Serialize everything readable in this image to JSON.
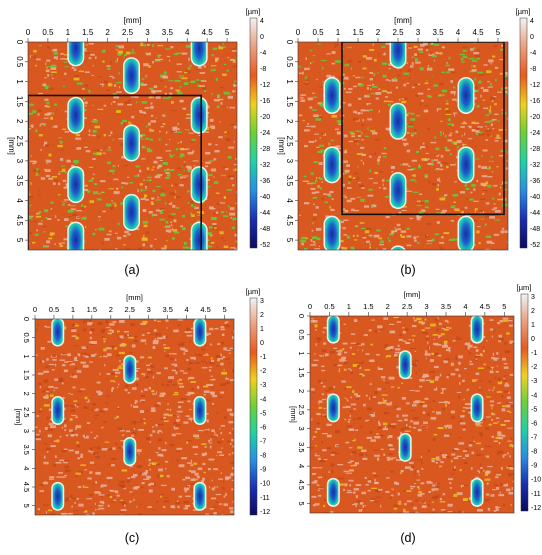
{
  "figure": {
    "panels": [
      {
        "id": "a",
        "caption": "(a)",
        "x_axis_title": "[mm]",
        "y_axis_title": "[mm]",
        "x_ticks": [
          "0",
          "0.5",
          "1",
          "1.5",
          "2",
          "2.5",
          "3",
          "3.5",
          "4",
          "4.5",
          "5"
        ],
        "y_ticks": [
          "0",
          "0.5",
          "1",
          "1.5",
          "2",
          "2.5",
          "3",
          "3.5",
          "4",
          "4.5",
          "5"
        ],
        "colorbar_unit": "[µm]",
        "colorbar_ticks": [
          "4",
          "0",
          "-4",
          "-8",
          "-12",
          "-16",
          "-20",
          "-24",
          "-28",
          "-32",
          "-36",
          "-40",
          "-44",
          "-48",
          "-52"
        ],
        "dimples_mm": [
          [
            1.2,
            0.15
          ],
          [
            2.6,
            0.85
          ],
          [
            4.3,
            0.15
          ],
          [
            1.2,
            1.85
          ],
          [
            2.6,
            2.55
          ],
          [
            4.3,
            1.85
          ],
          [
            1.2,
            3.6
          ],
          [
            2.6,
            4.3
          ],
          [
            4.3,
            3.6
          ],
          [
            1.2,
            5.0
          ],
          [
            4.3,
            5.0
          ]
        ],
        "highlight_box_mm": [
          0,
          1.35,
          4.35,
          5.75
        ]
      },
      {
        "id": "b",
        "caption": "(b)",
        "x_axis_title": "[mm]",
        "y_axis_title": "[mm]",
        "x_ticks": [
          "0",
          "0.5",
          "1",
          "1.5",
          "2",
          "2.5",
          "3",
          "3.5",
          "4",
          "4.5",
          "5"
        ],
        "y_ticks": [
          "0",
          "0.5",
          "1",
          "1.5",
          "2",
          "2.5",
          "3",
          "3.5",
          "4",
          "4.5",
          "5"
        ],
        "colorbar_unit": "[µm]",
        "colorbar_ticks": [
          "4",
          "0",
          "-4",
          "-8",
          "-12",
          "-16",
          "-20",
          "-24",
          "-28",
          "-32",
          "-36",
          "-40",
          "-44",
          "-48",
          "-52"
        ],
        "dimples_mm": [
          [
            2.5,
            0.2
          ],
          [
            0.85,
            1.35
          ],
          [
            2.5,
            2.0
          ],
          [
            4.2,
            1.35
          ],
          [
            0.85,
            3.1
          ],
          [
            2.5,
            3.75
          ],
          [
            4.2,
            3.1
          ],
          [
            0.85,
            4.85
          ],
          [
            4.2,
            4.85
          ],
          [
            2.5,
            5.6
          ]
        ],
        "highlight_box_mm": [
          1.1,
          0.0,
          5.15,
          4.35
        ]
      },
      {
        "id": "c",
        "caption": "(c)",
        "x_axis_title": "[mm]",
        "y_axis_title": "[mm]",
        "x_ticks": [
          "0",
          "0.5",
          "1",
          "1.5",
          "2",
          "2.5",
          "3",
          "3.5",
          "4",
          "4.5",
          "5"
        ],
        "y_ticks": [
          "0",
          "0.5",
          "1",
          "1.5",
          "2",
          "2.5",
          "3",
          "3.5",
          "4",
          "4.5",
          "5"
        ],
        "colorbar_unit": "[µm]",
        "colorbar_ticks": [
          "3",
          "2",
          "1",
          "0",
          "-1",
          "-2",
          "-3",
          "-4",
          "-5",
          "-6",
          "-7",
          "-8",
          "-9",
          "-10",
          "-11",
          "-12"
        ],
        "dimples_mm": [
          [
            0.6,
            0.35
          ],
          [
            2.5,
            1.35
          ],
          [
            0.6,
            2.45
          ],
          [
            4.35,
            2.45
          ],
          [
            2.5,
            3.55
          ],
          [
            0.6,
            4.75
          ],
          [
            4.35,
            4.75
          ],
          [
            4.35,
            0.35
          ]
        ],
        "highlight_box_mm": null
      },
      {
        "id": "d",
        "caption": "(d)",
        "x_axis_title": "[mm]",
        "y_axis_title": "[mm]",
        "x_ticks": [
          "0",
          "0.5",
          "1",
          "1.5",
          "2",
          "2.5",
          "3",
          "3.5",
          "4",
          "4.5",
          "5"
        ],
        "y_ticks": [
          "0",
          "0.5",
          "1",
          "1.5",
          "2",
          "2.5",
          "3",
          "3.5",
          "4",
          "4.5",
          "5"
        ],
        "colorbar_unit": "[µm]",
        "colorbar_ticks": [
          "3",
          "2",
          "1",
          "0",
          "-1",
          "-2",
          "-3",
          "-4",
          "-5",
          "-6",
          "-7",
          "-8",
          "-9",
          "-10",
          "-11",
          "-12"
        ],
        "dimples_mm": [
          [
            0.6,
            0.35
          ],
          [
            2.45,
            1.3
          ],
          [
            0.6,
            2.45
          ],
          [
            4.3,
            2.45
          ],
          [
            2.45,
            3.5
          ],
          [
            0.6,
            4.7
          ],
          [
            4.3,
            4.7
          ],
          [
            4.3,
            0.35
          ]
        ],
        "highlight_box_mm": null
      }
    ],
    "colors": {
      "surface_base": "#d9581f",
      "surface_light": "#eab09a",
      "surface_green": "#5ccf3f",
      "surface_yellow": "#e8c020",
      "dimple_outer": "#1fd0b0",
      "dimple_inner": "#1a2c9a",
      "highlight_box": "#111111",
      "colorbar_stops": [
        "#f3f3f3",
        "#e8a080",
        "#e55a20",
        "#f0d020",
        "#6ccf3a",
        "#22cfa6",
        "#2b8de0",
        "#1a2fb0",
        "#0b0b5e"
      ]
    }
  }
}
